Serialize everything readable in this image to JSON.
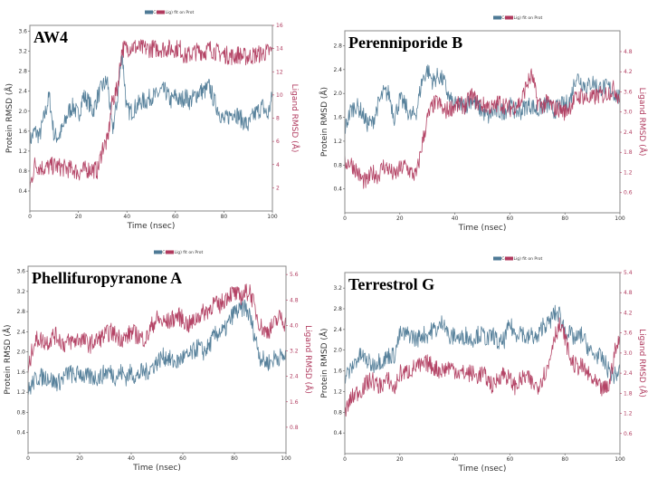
{
  "colors": {
    "protein": "#4e7a96",
    "ligand": "#b03a5e"
  },
  "chart_data": [
    {
      "type": "line",
      "title": "AW4",
      "legend": [
        "Cα",
        "Lig) fit on Prot"
      ],
      "legend_placement": "top-center",
      "xlabel": "Time (nsec)",
      "ylabel": "Protein RMSD (Å)",
      "y2label": "Ligand RMSD (Å)",
      "xlim": [
        0,
        100
      ],
      "ylim": [
        0,
        3.72
      ],
      "y2lim": [
        0,
        16
      ],
      "xticks": [
        "0",
        "20",
        "40",
        "60",
        "80",
        "100"
      ],
      "yticks": [
        "0.4",
        "0.8",
        "1.2",
        "1.6",
        "2.0",
        "2.4",
        "2.8",
        "3.2",
        "3.6"
      ],
      "y2ticks": [
        "2",
        "4",
        "6",
        "8",
        "10",
        "12",
        "14",
        "16"
      ],
      "x": [
        0,
        2,
        4,
        6,
        8,
        10,
        12,
        14,
        16,
        18,
        20,
        22,
        24,
        26,
        28,
        30,
        32,
        34,
        36,
        38,
        40,
        42,
        44,
        46,
        48,
        50,
        52,
        54,
        56,
        58,
        60,
        62,
        64,
        66,
        68,
        70,
        72,
        74,
        76,
        78,
        80,
        82,
        84,
        86,
        88,
        90,
        92,
        94,
        96,
        98,
        100
      ],
      "series": [
        {
          "name": "Cα",
          "axis": "left",
          "values": [
            1.4,
            1.6,
            1.5,
            1.9,
            2.3,
            1.5,
            1.5,
            1.7,
            2.0,
            2.1,
            1.9,
            2.3,
            2.2,
            2.0,
            2.3,
            2.5,
            2.6,
            1.6,
            2.2,
            3.2,
            2.0,
            2.0,
            2.1,
            2.2,
            2.2,
            2.3,
            2.3,
            2.4,
            2.4,
            2.2,
            2.3,
            2.2,
            2.3,
            2.2,
            2.3,
            2.4,
            2.4,
            2.5,
            2.2,
            2.0,
            1.8,
            1.9,
            2.0,
            1.9,
            1.8,
            1.7,
            1.9,
            2.0,
            2.1,
            1.9,
            2.3
          ]
        },
        {
          "name": "Lig) fit on Prot",
          "axis": "right",
          "values": [
            2,
            4,
            3.8,
            3.7,
            3.8,
            3.9,
            3.8,
            3.7,
            3.6,
            3.6,
            3.3,
            3.5,
            3.6,
            3.6,
            3.5,
            5.5,
            6,
            9.5,
            10.5,
            14,
            14,
            14.2,
            14.1,
            14,
            14,
            14,
            14,
            14,
            14,
            14,
            14,
            14,
            13.3,
            13.5,
            13.7,
            13.8,
            13.7,
            14,
            13.8,
            13.6,
            13.5,
            13.4,
            13.3,
            13.5,
            13.3,
            13.3,
            13.4,
            13.5,
            13.6,
            13.7,
            13.8
          ]
        }
      ]
    },
    {
      "type": "line",
      "title": "Perenniporide B",
      "legend": [
        "Cα",
        "Lig) fit on Prot"
      ],
      "legend_placement": "top-center",
      "xlabel": "Time (nsec)",
      "ylabel": "Protein RMSD (Å)",
      "y2label": "Ligand RMSD (Å)",
      "xlim": [
        0,
        100
      ],
      "ylim": [
        0,
        3.05
      ],
      "y2lim": [
        0,
        5.42
      ],
      "xticks": [
        "0",
        "20",
        "40",
        "60",
        "80",
        "100"
      ],
      "yticks": [
        "0.4",
        "0.8",
        "1.2",
        "1.6",
        "2.0",
        "2.4",
        "2.8"
      ],
      "y2ticks": [
        "0.6",
        "1.2",
        "1.8",
        "2.4",
        "3.0",
        "3.6",
        "4.2",
        "4.8"
      ],
      "x": [
        0,
        2,
        4,
        6,
        8,
        10,
        12,
        14,
        16,
        18,
        20,
        22,
        24,
        26,
        28,
        30,
        32,
        34,
        36,
        38,
        40,
        42,
        44,
        46,
        48,
        50,
        52,
        54,
        56,
        58,
        60,
        62,
        64,
        66,
        68,
        70,
        72,
        74,
        76,
        78,
        80,
        82,
        84,
        86,
        88,
        90,
        92,
        94,
        96,
        98,
        100
      ],
      "series": [
        {
          "name": "Cα",
          "axis": "left",
          "values": [
            1.4,
            1.7,
            1.8,
            1.7,
            1.5,
            1.5,
            1.8,
            2.0,
            2.0,
            1.6,
            1.9,
            1.8,
            1.6,
            1.7,
            2.2,
            2.4,
            2.2,
            2.3,
            2.2,
            1.9,
            1.8,
            1.8,
            1.8,
            1.9,
            1.8,
            1.7,
            1.6,
            1.7,
            1.7,
            1.7,
            1.8,
            1.7,
            1.7,
            1.8,
            1.8,
            1.7,
            1.8,
            1.8,
            1.7,
            1.8,
            1.8,
            1.9,
            2.3,
            2.2,
            2.1,
            2.2,
            2.1,
            2.1,
            2.1,
            2.0,
            1.9
          ]
        },
        {
          "name": "Lig) fit on Prot",
          "axis": "right",
          "values": [
            1.5,
            1.5,
            1.3,
            1.0,
            0.9,
            1.2,
            1.1,
            1.4,
            1.3,
            1.1,
            1.3,
            1.4,
            1.2,
            1.1,
            2.0,
            2.8,
            3.2,
            3.3,
            3.0,
            3.1,
            3.2,
            3.2,
            3.2,
            3.5,
            3.3,
            3.2,
            3.2,
            3.1,
            3.3,
            3.2,
            3.1,
            3.2,
            3.3,
            3.8,
            4.1,
            3.3,
            3.2,
            3.3,
            3.1,
            3.1,
            3.0,
            3.2,
            3.4,
            3.5,
            3.4,
            3.4,
            3.5,
            3.5,
            3.6,
            3.7,
            3.4
          ]
        }
      ]
    },
    {
      "type": "line",
      "title": "Phellifuropyranone A",
      "legend": [
        "Cα",
        "Lig) fit on Prot"
      ],
      "legend_placement": "top-center",
      "xlabel": "Time (nsec)",
      "ylabel": "Protein RMSD (Å)",
      "y2label": "Ligand RMSD (Å)",
      "xlim": [
        0,
        100
      ],
      "ylim": [
        0,
        3.7
      ],
      "y2lim": [
        0,
        5.86
      ],
      "xticks": [
        "0",
        "20",
        "40",
        "60",
        "80",
        "100"
      ],
      "yticks": [
        "0.4",
        "0.8",
        "1.2",
        "1.6",
        "2.0",
        "2.4",
        "2.8",
        "3.2",
        "3.6"
      ],
      "y2ticks": [
        "0.8",
        "1.6",
        "2.4",
        "3.2",
        "4.0",
        "4.8",
        "5.6"
      ],
      "x": [
        0,
        2,
        4,
        6,
        8,
        10,
        12,
        14,
        16,
        18,
        20,
        22,
        24,
        26,
        28,
        30,
        32,
        34,
        36,
        38,
        40,
        42,
        44,
        46,
        48,
        50,
        52,
        54,
        56,
        58,
        60,
        62,
        64,
        66,
        68,
        70,
        72,
        74,
        76,
        78,
        80,
        82,
        84,
        86,
        88,
        90,
        92,
        94,
        96,
        98,
        100
      ],
      "series": [
        {
          "name": "Cα",
          "axis": "left",
          "values": [
            1.2,
            1.4,
            1.5,
            1.5,
            1.5,
            1.4,
            1.4,
            1.5,
            1.6,
            1.5,
            1.6,
            1.5,
            1.5,
            1.5,
            1.5,
            1.6,
            1.6,
            1.5,
            1.6,
            1.5,
            1.6,
            1.5,
            1.6,
            1.6,
            1.7,
            1.8,
            1.9,
            1.9,
            1.8,
            1.8,
            1.9,
            1.9,
            2.0,
            2.1,
            2.0,
            2.1,
            2.3,
            2.4,
            2.4,
            2.6,
            2.8,
            2.8,
            2.9,
            2.7,
            2.3,
            1.9,
            1.8,
            1.8,
            1.9,
            1.9,
            1.9
          ]
        },
        {
          "name": "Lig) fit on Prot",
          "axis": "right",
          "values": [
            2.5,
            3.4,
            3.6,
            3.5,
            3.5,
            3.7,
            3.6,
            3.4,
            3.5,
            3.5,
            3.6,
            3.5,
            3.4,
            3.5,
            3.6,
            3.7,
            3.8,
            3.7,
            3.6,
            3.6,
            3.8,
            3.7,
            3.6,
            3.6,
            4.0,
            4.2,
            4.1,
            4.1,
            4.2,
            4.3,
            4.2,
            4.0,
            4.1,
            4.3,
            4.4,
            4.5,
            4.7,
            4.6,
            4.8,
            5.0,
            5.0,
            4.9,
            5.0,
            5.1,
            4.5,
            4.0,
            3.8,
            3.9,
            4.1,
            4.3,
            4.0
          ]
        }
      ]
    },
    {
      "type": "line",
      "title": "Terrestrol G",
      "legend": [
        "Cα",
        "Lig) fit on Prot"
      ],
      "legend_placement": "top-center",
      "xlabel": "Time (nsec)",
      "ylabel": "Protein RMSD (Å)",
      "y2label": "Ligand RMSD (Å)",
      "xlim": [
        0,
        100
      ],
      "ylim": [
        0,
        3.5
      ],
      "y2lim": [
        0,
        5.4
      ],
      "xticks": [
        "0",
        "20",
        "40",
        "60",
        "80",
        "100"
      ],
      "yticks": [
        "0.4",
        "0.8",
        "1.2",
        "1.6",
        "2.0",
        "2.4",
        "2.8",
        "3.2"
      ],
      "y2ticks": [
        "0.6",
        "1.2",
        "1.8",
        "2.4",
        "3.0",
        "3.6",
        "4.2",
        "4.8",
        "5.4"
      ],
      "x": [
        0,
        2,
        4,
        6,
        8,
        10,
        12,
        14,
        16,
        18,
        20,
        22,
        24,
        26,
        28,
        30,
        32,
        34,
        36,
        38,
        40,
        42,
        44,
        46,
        48,
        50,
        52,
        54,
        56,
        58,
        60,
        62,
        64,
        66,
        68,
        70,
        72,
        74,
        76,
        78,
        80,
        82,
        84,
        86,
        88,
        90,
        92,
        94,
        96,
        98,
        100
      ],
      "series": [
        {
          "name": "Cα",
          "axis": "left",
          "values": [
            1.5,
            1.6,
            1.8,
            1.9,
            1.8,
            1.7,
            1.8,
            1.8,
            1.9,
            1.9,
            2.3,
            2.3,
            2.3,
            2.2,
            2.3,
            2.3,
            2.4,
            2.4,
            2.6,
            2.2,
            2.3,
            2.2,
            2.3,
            2.2,
            2.3,
            2.3,
            2.2,
            2.3,
            2.1,
            2.2,
            2.5,
            2.3,
            2.4,
            2.2,
            2.3,
            2.2,
            2.5,
            2.5,
            2.7,
            2.7,
            2.4,
            2.3,
            2.2,
            2.3,
            2.1,
            1.9,
            1.9,
            1.8,
            1.6,
            1.5,
            1.6
          ]
        },
        {
          "name": "Lig) fit on Prot",
          "axis": "right",
          "values": [
            1.2,
            1.6,
            1.8,
            1.9,
            2.1,
            2.2,
            2.0,
            2.1,
            2.2,
            1.9,
            2.4,
            2.4,
            2.5,
            2.6,
            2.6,
            2.7,
            2.6,
            2.5,
            2.5,
            2.6,
            2.5,
            2.4,
            2.4,
            2.4,
            2.3,
            2.4,
            2.2,
            2.0,
            2.3,
            2.4,
            2.2,
            2.0,
            2.2,
            2.3,
            2.1,
            2.0,
            2.3,
            2.6,
            3.5,
            3.8,
            3.5,
            2.8,
            2.6,
            2.6,
            2.4,
            2.2,
            2.0,
            1.9,
            2.0,
            3.0,
            3.4
          ]
        }
      ]
    }
  ]
}
